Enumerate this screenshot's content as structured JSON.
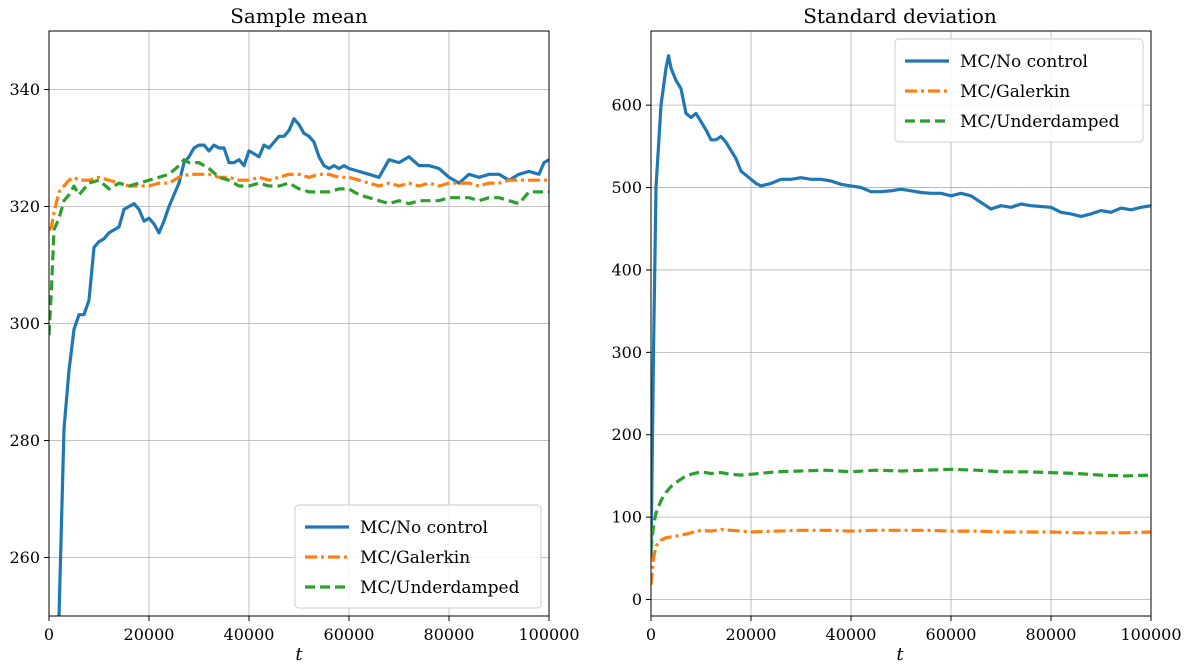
{
  "chart_data": [
    {
      "type": "line",
      "title": "Sample mean",
      "xlabel": "t",
      "ylabel": "",
      "xlim": [
        0,
        100000
      ],
      "ylim": [
        250,
        350
      ],
      "x_ticks": [
        0,
        20000,
        40000,
        60000,
        80000,
        100000
      ],
      "x_tick_labels": [
        "0",
        "20000",
        "40000",
        "60000",
        "80000",
        "100000"
      ],
      "y_ticks": [
        260,
        280,
        300,
        320,
        340
      ],
      "y_tick_labels": [
        "260",
        "280",
        "300",
        "320",
        "340"
      ],
      "grid": true,
      "legend_position": "lower-right",
      "series": [
        {
          "name": "MC/No control",
          "color": "#1f77b4",
          "style": "solid",
          "x": [
            2000,
            3000,
            4000,
            5000,
            6000,
            7000,
            8000,
            9000,
            10000,
            11000,
            12000,
            13000,
            14000,
            15000,
            16000,
            17000,
            18000,
            19000,
            20000,
            21000,
            22000,
            23000,
            24000,
            25000,
            26000,
            27000,
            28000,
            29000,
            30000,
            31000,
            32000,
            33000,
            34000,
            35000,
            36000,
            37000,
            38000,
            39000,
            40000,
            41000,
            42000,
            43000,
            44000,
            45000,
            46000,
            47000,
            48000,
            49000,
            50000,
            51000,
            52000,
            53000,
            54000,
            55000,
            56000,
            57000,
            58000,
            59000,
            60000,
            62000,
            64000,
            66000,
            68000,
            70000,
            72000,
            74000,
            76000,
            78000,
            80000,
            82000,
            84000,
            86000,
            88000,
            90000,
            92000,
            94000,
            96000,
            98000,
            99000,
            100000
          ],
          "y": [
            250,
            282,
            292,
            299,
            301.5,
            301.5,
            304,
            313,
            314,
            314.5,
            315.5,
            316,
            316.5,
            319.5,
            320,
            320.5,
            319.5,
            317.5,
            318,
            317,
            315.5,
            317.5,
            320,
            322,
            324,
            327.5,
            328.5,
            330,
            330.5,
            330.5,
            329.5,
            330.5,
            330,
            330,
            327.5,
            327.5,
            328,
            327,
            329.5,
            329,
            328.5,
            330.5,
            330,
            331,
            332,
            332,
            333,
            335,
            334,
            332.5,
            332,
            331,
            328.5,
            327,
            326.5,
            327,
            326.5,
            327,
            326.5,
            326,
            325.5,
            325,
            328,
            327.5,
            328.5,
            327,
            327,
            326.5,
            325,
            324,
            325.5,
            325,
            325.5,
            325.5,
            324.5,
            325.5,
            326,
            325.5,
            327.5,
            328
          ]
        },
        {
          "name": "MC/Galerkin",
          "color": "#ff7f0e",
          "style": "dashdot",
          "x": [
            0,
            500,
            1000,
            2000,
            3000,
            4000,
            5000,
            6000,
            8000,
            10000,
            12000,
            14000,
            16000,
            18000,
            20000,
            22000,
            24000,
            26000,
            28000,
            30000,
            32000,
            34000,
            36000,
            38000,
            40000,
            42000,
            44000,
            46000,
            48000,
            50000,
            52000,
            54000,
            56000,
            58000,
            60000,
            62000,
            64000,
            66000,
            68000,
            70000,
            72000,
            74000,
            76000,
            78000,
            80000,
            82000,
            84000,
            86000,
            88000,
            90000,
            92000,
            94000,
            96000,
            98000,
            100000
          ],
          "y": [
            316,
            316.5,
            319,
            322.5,
            323.5,
            324.5,
            325,
            324.5,
            324.5,
            325,
            324.5,
            324,
            323.5,
            323.5,
            323.5,
            324,
            324,
            325,
            325.5,
            325.5,
            325.5,
            325,
            325,
            324.5,
            324.5,
            325,
            324.5,
            325,
            325.5,
            325.5,
            325,
            325.5,
            325.5,
            325,
            325,
            324.5,
            324,
            323.5,
            324,
            323.5,
            324,
            323.5,
            324,
            323.5,
            324,
            324,
            324,
            323.5,
            324,
            324,
            324.5,
            324.5,
            324.5,
            324.5,
            324.5
          ]
        },
        {
          "name": "MC/Underdamped",
          "color": "#2ca02c",
          "style": "dashed",
          "x": [
            0,
            500,
            1000,
            2000,
            3000,
            4000,
            5000,
            6000,
            8000,
            10000,
            12000,
            14000,
            16000,
            18000,
            20000,
            22000,
            24000,
            26000,
            27000,
            28000,
            30000,
            32000,
            34000,
            36000,
            38000,
            40000,
            42000,
            44000,
            46000,
            48000,
            50000,
            52000,
            54000,
            56000,
            58000,
            60000,
            62000,
            64000,
            66000,
            68000,
            70000,
            72000,
            74000,
            76000,
            78000,
            80000,
            82000,
            84000,
            86000,
            88000,
            90000,
            92000,
            94000,
            96000,
            98000,
            100000
          ],
          "y": [
            298,
            306,
            316,
            318,
            321,
            322,
            323.5,
            322,
            324,
            324.5,
            323,
            324,
            323.5,
            324,
            324.5,
            325,
            325.5,
            327,
            328,
            327.5,
            327.5,
            326.5,
            325,
            324.5,
            323.5,
            323.5,
            324,
            323.5,
            323.5,
            324,
            323,
            322.5,
            322.5,
            322.5,
            323,
            323,
            322,
            321.5,
            321,
            320.5,
            321,
            320.5,
            321,
            321,
            321,
            321.5,
            321.5,
            321.5,
            321,
            321.5,
            321.5,
            321,
            320.5,
            322.5,
            322.5,
            322.5
          ]
        }
      ]
    },
    {
      "type": "line",
      "title": "Standard deviation",
      "xlabel": "t",
      "ylabel": "",
      "xlim": [
        0,
        100000
      ],
      "ylim": [
        -20,
        690
      ],
      "x_ticks": [
        0,
        20000,
        40000,
        60000,
        80000,
        100000
      ],
      "x_tick_labels": [
        "0",
        "20000",
        "40000",
        "60000",
        "80000",
        "100000"
      ],
      "y_ticks": [
        0,
        100,
        200,
        300,
        400,
        500,
        600
      ],
      "y_tick_labels": [
        "0",
        "100",
        "200",
        "300",
        "400",
        "500",
        "600"
      ],
      "grid": true,
      "legend_position": "upper-right",
      "series": [
        {
          "name": "MC/No control",
          "color": "#1f77b4",
          "style": "solid",
          "x": [
            0,
            500,
            1000,
            2000,
            3000,
            3500,
            4000,
            5000,
            6000,
            7000,
            8000,
            9000,
            10000,
            11000,
            12000,
            13000,
            14000,
            15000,
            16000,
            17000,
            18000,
            19000,
            20000,
            21000,
            22000,
            24000,
            26000,
            28000,
            30000,
            32000,
            34000,
            36000,
            38000,
            40000,
            42000,
            44000,
            46000,
            48000,
            50000,
            52000,
            54000,
            56000,
            58000,
            60000,
            62000,
            64000,
            66000,
            68000,
            70000,
            72000,
            74000,
            76000,
            78000,
            80000,
            82000,
            84000,
            86000,
            88000,
            90000,
            92000,
            94000,
            96000,
            98000,
            100000
          ],
          "y": [
            50,
            300,
            500,
            600,
            645,
            660,
            645,
            630,
            620,
            590,
            585,
            590,
            580,
            570,
            558,
            558,
            562,
            555,
            545,
            535,
            520,
            515,
            510,
            505,
            502,
            505,
            510,
            510,
            512,
            510,
            510,
            508,
            504,
            502,
            500,
            495,
            495,
            496,
            498,
            496,
            494,
            493,
            493,
            490,
            493,
            490,
            482,
            474,
            478,
            476,
            480,
            478,
            477,
            476,
            470,
            468,
            465,
            468,
            472,
            470,
            475,
            473,
            476,
            478
          ]
        },
        {
          "name": "MC/Galerkin",
          "color": "#ff7f0e",
          "style": "dashdot",
          "x": [
            0,
            500,
            1000,
            2000,
            3000,
            4000,
            5000,
            6000,
            8000,
            10000,
            12000,
            14000,
            16000,
            18000,
            20000,
            25000,
            30000,
            35000,
            40000,
            45000,
            50000,
            55000,
            60000,
            65000,
            70000,
            75000,
            80000,
            85000,
            90000,
            95000,
            100000
          ],
          "y": [
            18,
            50,
            65,
            72,
            75,
            76,
            77,
            78,
            81,
            84,
            83,
            85,
            84,
            83,
            82,
            83,
            84,
            84,
            83,
            84,
            84,
            84,
            83,
            83,
            82,
            82,
            82,
            81,
            81,
            81,
            82
          ]
        },
        {
          "name": "MC/Underdamped",
          "color": "#2ca02c",
          "style": "dashed",
          "x": [
            0,
            500,
            1000,
            2000,
            3000,
            4000,
            5000,
            6000,
            7000,
            8000,
            10000,
            12000,
            14000,
            16000,
            18000,
            20000,
            25000,
            30000,
            35000,
            40000,
            45000,
            50000,
            55000,
            60000,
            65000,
            70000,
            75000,
            80000,
            85000,
            90000,
            95000,
            100000
          ],
          "y": [
            60,
            90,
            105,
            120,
            130,
            137,
            142,
            146,
            150,
            152,
            155,
            153,
            154,
            152,
            151,
            152,
            155,
            156,
            157,
            155,
            157,
            156,
            157,
            158,
            157,
            155,
            155,
            154,
            153,
            151,
            150,
            151
          ]
        }
      ]
    }
  ]
}
